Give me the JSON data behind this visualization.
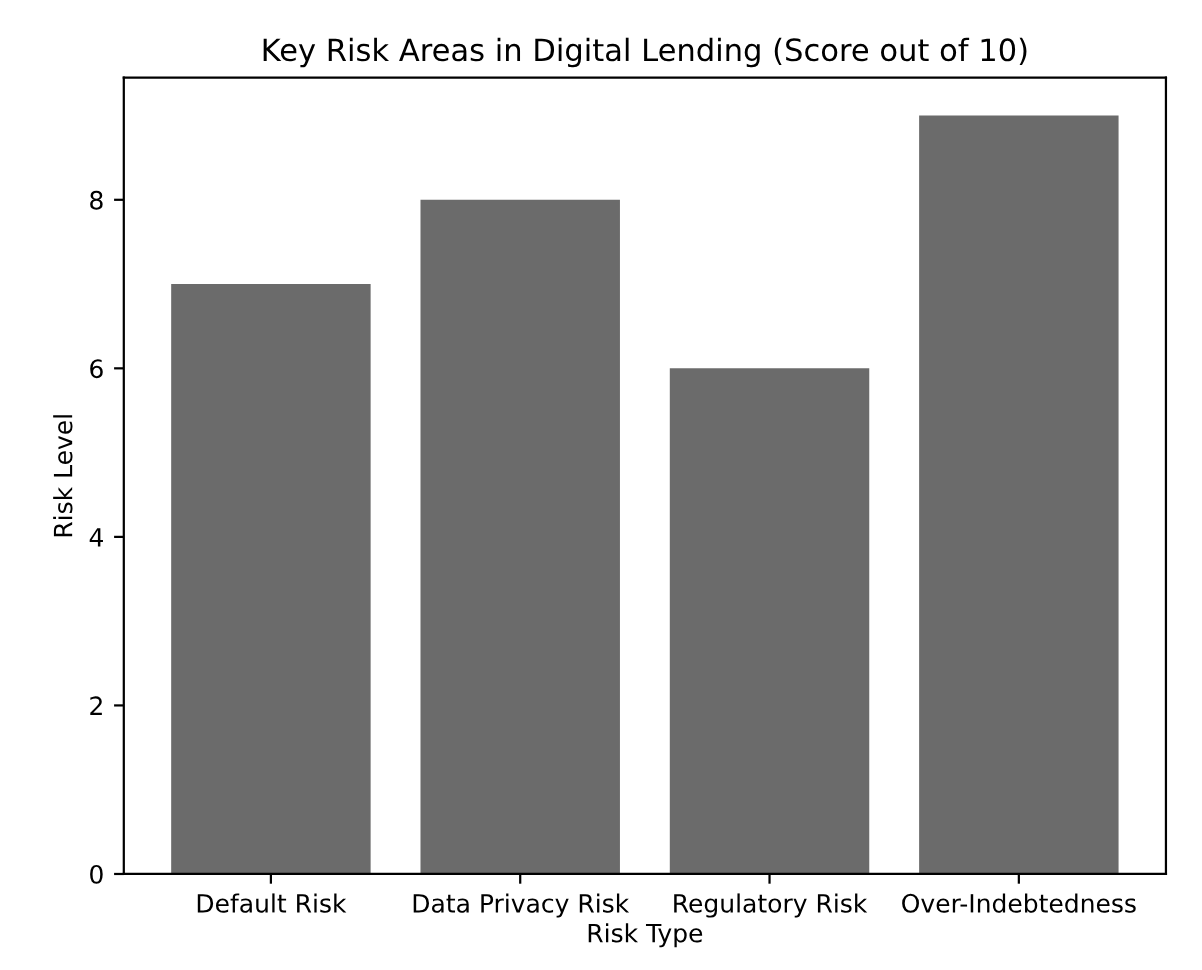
{
  "chart_data": {
    "type": "bar",
    "title": "Key Risk Areas in Digital Lending (Score out of 10)",
    "xlabel": "Risk Type",
    "ylabel": "Risk Level",
    "categories": [
      "Default Risk",
      "Data Privacy Risk",
      "Regulatory Risk",
      "Over-Indebtedness"
    ],
    "values": [
      7,
      8,
      6,
      9
    ],
    "color": "#6b6b6b",
    "ylim": [
      0,
      9.45
    ],
    "yticks": [
      0,
      2,
      4,
      6,
      8
    ],
    "grid": false,
    "legend": false
  }
}
